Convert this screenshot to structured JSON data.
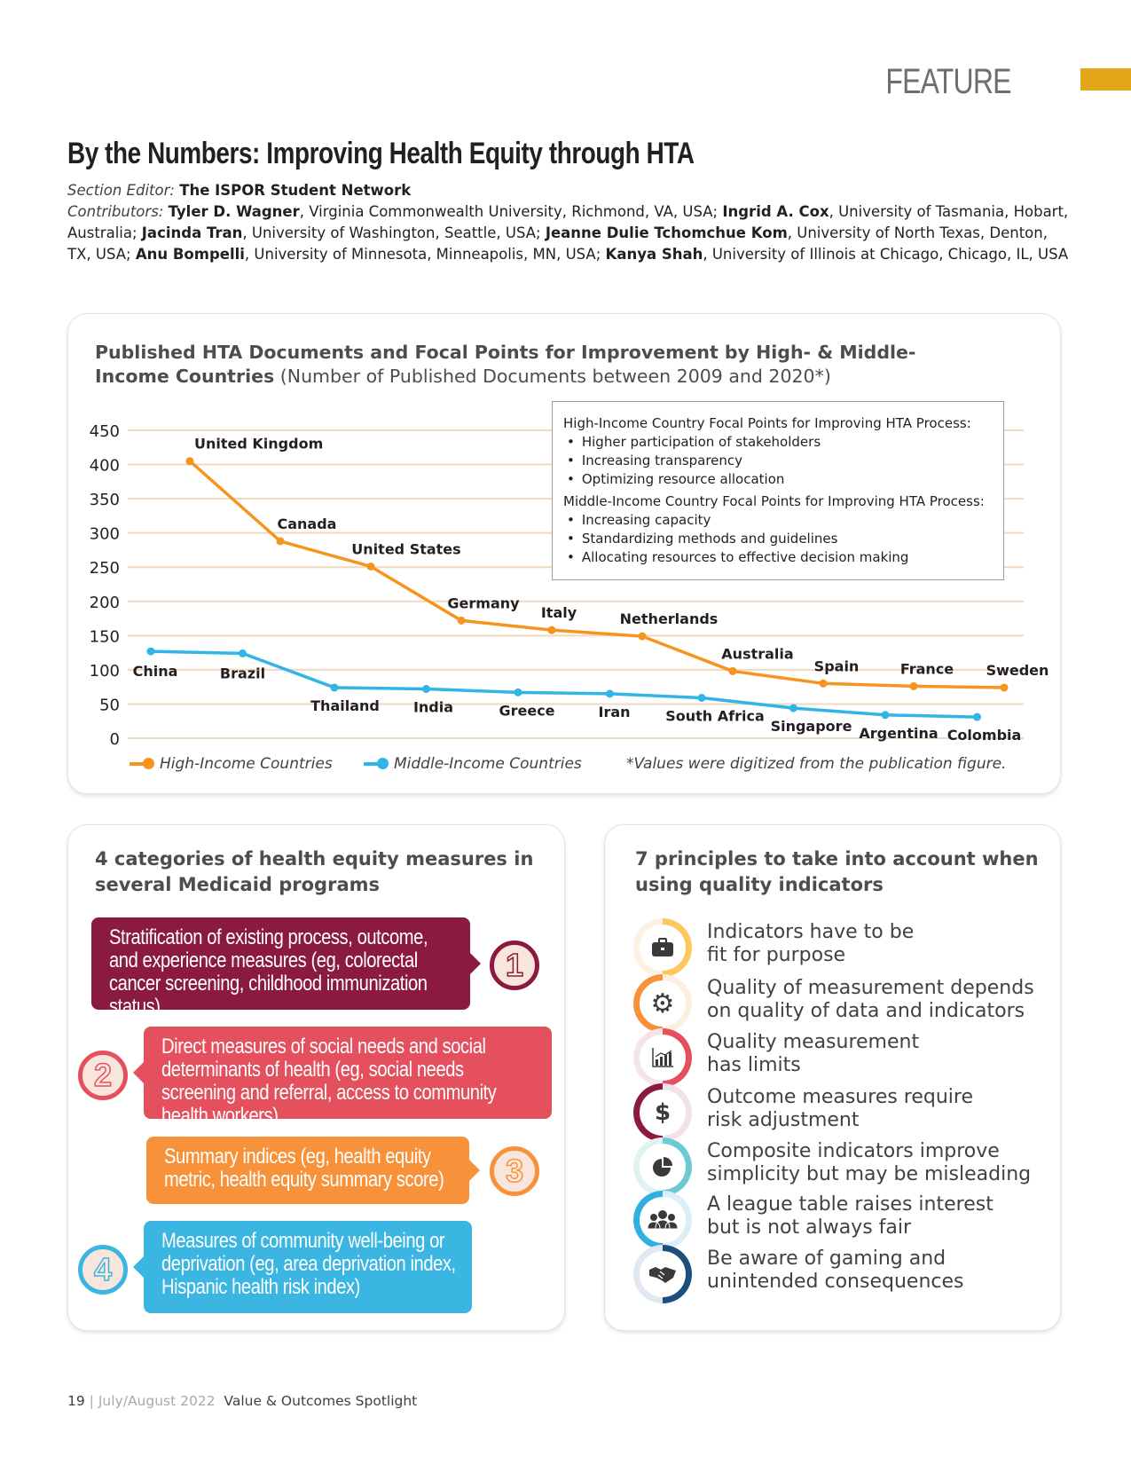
{
  "header": {
    "section": "FEATURE",
    "accent": "#e1a717"
  },
  "article": {
    "title": "By the Numbers: Improving Health Equity through HTA",
    "section_editor_label": "Section Editor:",
    "section_editor": "The ISPOR Student Network",
    "contributors_label": "Contributors:",
    "contributors": [
      {
        "name": "Tyler D. Wagner",
        "affil": ", Virginia Commonwealth University, Richmond, VA, USA; "
      },
      {
        "name": "Ingrid A. Cox",
        "affil": ", University of Tasmania, Hobart, Australia; "
      },
      {
        "name": "Jacinda Tran",
        "affil": ", University of Washington, Seattle, USA; "
      },
      {
        "name": "Jeanne Dulie Tchomchue Kom",
        "affil": ", University of North Texas, Denton, TX, USA; "
      },
      {
        "name": "Anu Bompelli",
        "affil": ", University of Minnesota, Minneapolis, MN, USA; "
      },
      {
        "name": "Kanya Shah",
        "affil": ", University of Illinois at Chicago, Chicago, IL, USA"
      }
    ]
  },
  "chart_card": {
    "title_bold": "Published HTA Documents and Focal Points for Improvement by High- & Middle-Income Countries",
    "title_rest": " (Number of Published Documents between 2009 and 2020*)",
    "focal": {
      "high_heading": "High-Income Country Focal Points for Improving HTA Process:",
      "high_items": [
        "Higher participation of stakeholders",
        "Increasing transparency",
        "Optimizing resource allocation"
      ],
      "mid_heading": "Middle-Income Country Focal Points for Improving HTA Process:",
      "mid_items": [
        "Increasing capacity",
        "Standardizing methods and guidelines",
        "Allocating resources to effective decision making"
      ]
    },
    "footnote": "*Values were digitized from the publication figure."
  },
  "chart_data": {
    "type": "line",
    "title": "Published HTA Documents and Focal Points for Improvement by High- & Middle-Income Countries",
    "ylabel": "Number of Published Documents between 2009 and 2020",
    "ylim": [
      0,
      450
    ],
    "yticks": [
      0,
      50,
      100,
      150,
      200,
      250,
      300,
      350,
      400,
      450
    ],
    "grid": true,
    "legend_position": "bottom",
    "series": [
      {
        "name": "High-Income Countries",
        "color": "#f7941d",
        "labels": [
          "United Kingdom",
          "Canada",
          "United States",
          "Germany",
          "Italy",
          "Netherlands",
          "Australia",
          "Spain",
          "France",
          "Sweden"
        ],
        "values": [
          405,
          288,
          251,
          172,
          158,
          149,
          98,
          80,
          76,
          74
        ]
      },
      {
        "name": "Middle-Income Countries",
        "color": "#31b4e6",
        "labels": [
          "China",
          "Brazil",
          "Thailand",
          "India",
          "Greece",
          "Iran",
          "South Africa",
          "Singapore",
          "Argentina",
          "Colombia"
        ],
        "values": [
          127,
          124,
          74,
          72,
          67,
          65,
          59,
          44,
          34,
          31
        ]
      }
    ]
  },
  "measures": {
    "title": "4 categories of health equity measures in several Medicaid programs",
    "items": [
      {
        "n": "1",
        "text": "Stratification of existing process, outcome, and experience measures (eg, colorectal cancer screening, childhood immunization status)",
        "color": "#8b1a3f"
      },
      {
        "n": "2",
        "text": "Direct measures of social needs and social determinants of health (eg, social needs screening and referral, access to community health workers)",
        "color": "#e4505d"
      },
      {
        "n": "3",
        "text": "Summary indices (eg, health equity metric, health equity summary score)",
        "color": "#f7923a"
      },
      {
        "n": "4",
        "text": "Measures of community well-being or deprivation (eg, area deprivation index, Hispanic health risk index)",
        "color": "#3bb6e3"
      }
    ]
  },
  "principles": {
    "title": "7 principles to take into account when using quality indicators",
    "items": [
      {
        "icon": "briefcase-icon",
        "l1": "Indicators have to be",
        "l2": "fit for purpose",
        "color": "#fdc75d",
        "tint": "#fdf1e2"
      },
      {
        "icon": "gear-icon",
        "l1": "Quality of measurement depends",
        "l2": "on quality of data and indicators",
        "color": "#f7923a",
        "tint": "#fdeee2"
      },
      {
        "icon": "bar-chart-icon",
        "l1": "Quality measurement",
        "l2": "has limits",
        "color": "#e4505d",
        "tint": "#f7e3ea"
      },
      {
        "icon": "dollar-icon",
        "l1": "Outcome measures require",
        "l2": "risk adjustment",
        "color": "#8b1a3f",
        "tint": "#f3e1ea"
      },
      {
        "icon": "pie-chart-icon",
        "l1": "Composite indicators improve",
        "l2": "simplicity but may be misleading",
        "color": "#6ccbd2",
        "tint": "#e0f3f3"
      },
      {
        "icon": "people-icon",
        "l1": "A league table raises interest",
        "l2": "but is not always fair",
        "color": "#2fb0e3",
        "tint": "#deeef9"
      },
      {
        "icon": "handshake-icon",
        "l1": "Be aware of gaming and",
        "l2": "unintended consequences",
        "color": "#1c4f7c",
        "tint": "#e1e8f0"
      }
    ]
  },
  "footer": {
    "page": "19",
    "sep": "|",
    "date": "July/August 2022",
    "publication": "Value & Outcomes Spotlight"
  }
}
